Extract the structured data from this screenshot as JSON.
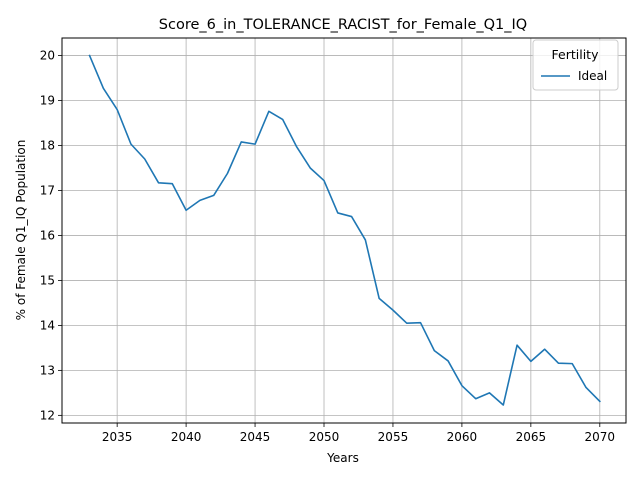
{
  "chart_data": {
    "type": "line",
    "title": "Score_6_in_TOLERANCE_RACIST_for_Female_Q1_IQ",
    "xlabel": "Years",
    "ylabel": "% of Female Q1_IQ Population",
    "xlim": [
      2031,
      2071.9
    ],
    "ylim": [
      11.83,
      20.39
    ],
    "xticks": [
      2035,
      2040,
      2045,
      2050,
      2055,
      2060,
      2065,
      2070
    ],
    "yticks": [
      12,
      13,
      14,
      15,
      16,
      17,
      18,
      19,
      20
    ],
    "grid": true,
    "legend": {
      "title": "Fertility",
      "placement": "top-right"
    },
    "series": [
      {
        "name": "Ideal",
        "color": "#1f77b4",
        "x": [
          2033,
          2034,
          2035,
          2036,
          2037,
          2038,
          2039,
          2040,
          2041,
          2042,
          2043,
          2044,
          2045,
          2046,
          2047,
          2048,
          2049,
          2050,
          2051,
          2052,
          2053,
          2054,
          2055,
          2056,
          2057,
          2058,
          2059,
          2060,
          2061,
          2062,
          2063,
          2064,
          2065,
          2066,
          2067,
          2068,
          2069,
          2070
        ],
        "y": [
          20.0,
          19.27,
          18.8,
          18.03,
          17.7,
          17.17,
          17.15,
          16.56,
          16.78,
          16.89,
          17.38,
          18.08,
          18.03,
          18.76,
          18.58,
          17.98,
          17.5,
          17.22,
          16.5,
          16.42,
          15.9,
          14.6,
          14.34,
          14.05,
          14.06,
          13.44,
          13.21,
          12.66,
          12.37,
          12.5,
          12.23,
          13.56,
          13.2,
          13.47,
          13.16,
          13.15,
          12.62,
          12.31
        ]
      }
    ]
  }
}
